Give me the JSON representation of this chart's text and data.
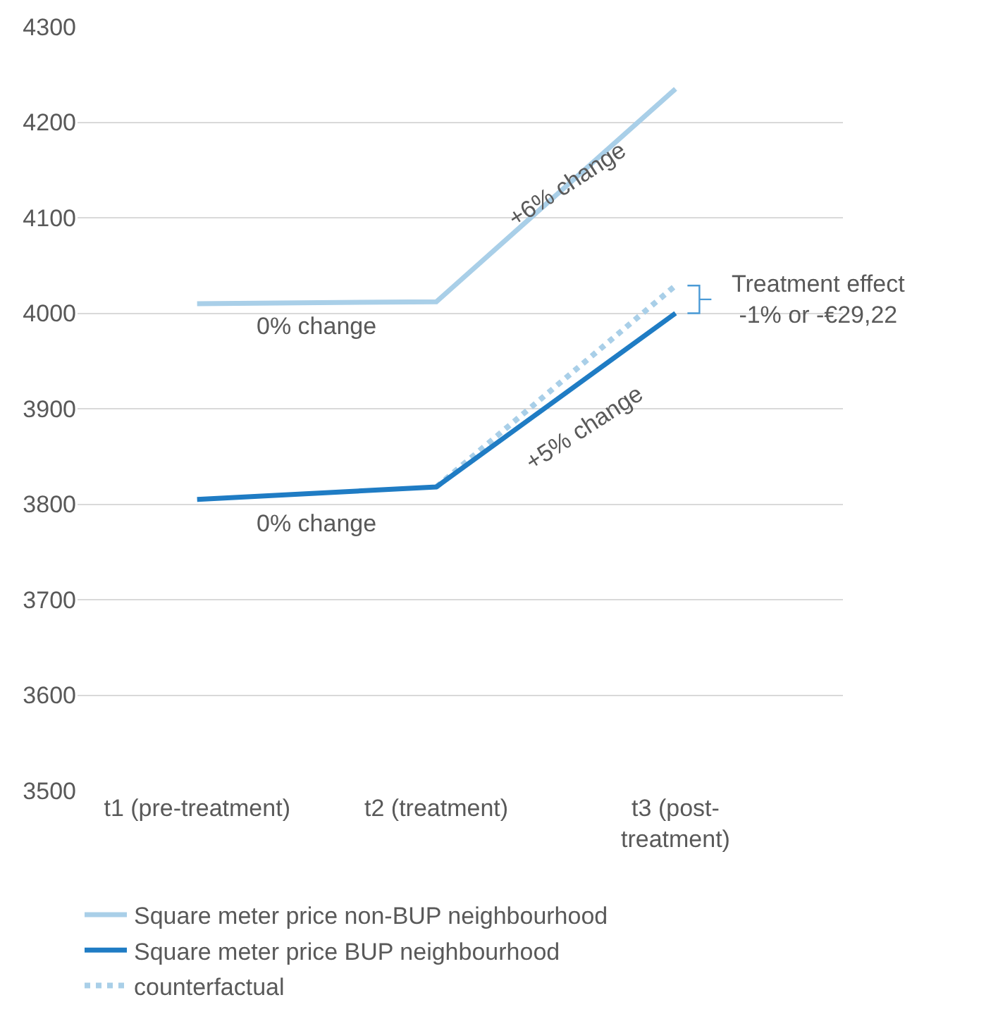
{
  "chart_data": {
    "type": "line",
    "categories": [
      "t1 (pre-treatment)",
      "t2 (treatment)",
      "t3 (post-treatment)"
    ],
    "series": [
      {
        "name": "Square meter price non-BUP neighbourhood",
        "color": "#a9cfe8",
        "values": [
          4010,
          4012,
          4235
        ],
        "line_style": "solid"
      },
      {
        "name": "Square meter price BUP neighbourhood",
        "color": "#1f7cc4",
        "values": [
          3805,
          3818,
          4000
        ],
        "line_style": "solid"
      },
      {
        "name": "counterfactual",
        "color": "#a9cfe8",
        "values": [
          null,
          3818,
          4029
        ],
        "line_style": "dotted"
      }
    ],
    "ylim": [
      3500,
      4300
    ],
    "yticks": [
      3500,
      3600,
      3700,
      3800,
      3900,
      4000,
      4100,
      4200,
      4300
    ],
    "grid": "y",
    "legend": "bottom",
    "marker": "none",
    "annotations": [
      "+6% change",
      "0% change",
      "+5% change",
      "0% change",
      "Treatment effect\n-1% or -€29,22"
    ]
  }
}
